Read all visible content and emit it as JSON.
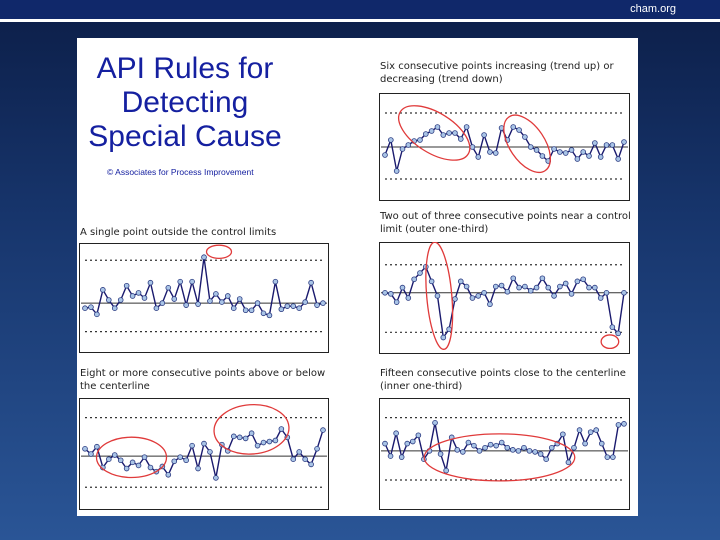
{
  "header": {
    "site": "cham.org"
  },
  "slide": {
    "title_lines": [
      "API Rules for",
      "Detecting",
      "Special Cause"
    ],
    "copyright": "© Associates for Process Improvement"
  },
  "colors": {
    "line": "#1a1a6e",
    "marker_fill": "#a9c4e6",
    "highlight": "#e03a3a",
    "limit": "#333333"
  },
  "chart_data": [
    {
      "type": "line",
      "caption": "Six consecutive points increasing (trend up) or decreasing (trend down)",
      "ylim": [
        0,
        100
      ],
      "ucl": 84,
      "lcl": 18,
      "centerline": 50,
      "grid": false,
      "y": [
        42,
        57,
        26,
        48,
        52,
        56,
        57,
        63,
        66,
        70,
        62,
        64,
        64,
        58,
        70,
        50,
        40,
        62,
        45,
        44,
        69,
        57,
        70,
        67,
        60,
        50,
        47,
        41,
        36,
        48,
        45,
        44,
        47,
        38,
        45,
        41,
        54,
        40,
        52,
        52,
        38,
        55
      ],
      "highlights": [
        [
          0.22,
          0.37,
          0.08,
          0.37,
          -58
        ],
        [
          0.59,
          0.47,
          0.07,
          0.3,
          -34
        ]
      ]
    },
    {
      "type": "line",
      "caption": "A single point outside the control limits",
      "ylim": [
        0,
        100
      ],
      "ucl": 87,
      "lcl": 17,
      "centerline": 45,
      "grid": false,
      "y": [
        40,
        41,
        34,
        58,
        48,
        40,
        48,
        62,
        52,
        55,
        50,
        65,
        40,
        45,
        60,
        49,
        66,
        43,
        66,
        44,
        90,
        47,
        54,
        46,
        52,
        40,
        49,
        38,
        38,
        45,
        35,
        33,
        66,
        39,
        42,
        42,
        40,
        46,
        65,
        43,
        45
      ],
      "highlights": [
        [
          0.56,
          0.08,
          0.05,
          0.06,
          0
        ]
      ]
    },
    {
      "type": "line",
      "caption": "Two out of three consecutive points near a control limit (outer one-third)",
      "ylim": [
        0,
        100
      ],
      "ucl": 82,
      "lcl": 17,
      "centerline": 55,
      "grid": false,
      "y": [
        55,
        54,
        46,
        60,
        50,
        68,
        74,
        80,
        66,
        52,
        12,
        20,
        49,
        66,
        61,
        50,
        52,
        55,
        44,
        61,
        62,
        56,
        69,
        60,
        61,
        57,
        60,
        69,
        60,
        52,
        61,
        64,
        54,
        66,
        68,
        60,
        60,
        50,
        55,
        22,
        16,
        55
      ],
      "highlights": [
        [
          0.24,
          0.48,
          0.05,
          0.48,
          -5
        ],
        [
          0.92,
          0.89,
          0.035,
          0.06,
          0
        ]
      ]
    },
    {
      "type": "line",
      "caption": "Eight or more consecutive points above or below the centerline",
      "ylim": [
        0,
        100
      ],
      "ucl": 85,
      "lcl": 18,
      "centerline": 48,
      "grid": false,
      "y": [
        55,
        50,
        57,
        37,
        45,
        49,
        44,
        36,
        42,
        39,
        47,
        37,
        33,
        38,
        30,
        43,
        47,
        44,
        58,
        36,
        60,
        52,
        27,
        59,
        53,
        67,
        66,
        65,
        70,
        58,
        61,
        62,
        63,
        74,
        66,
        45,
        52,
        45,
        40,
        55,
        73
      ],
      "highlights": [
        [
          0.21,
          0.53,
          0.14,
          0.18,
          0
        ],
        [
          0.69,
          0.28,
          0.15,
          0.22,
          -4
        ]
      ]
    },
    {
      "type": "line",
      "caption": "Fifteen consecutive points close to the centerline (inner one-third)",
      "ylim": [
        0,
        100
      ],
      "ucl": 85,
      "lcl": 25,
      "centerline": 53,
      "grid": false,
      "y": [
        60,
        48,
        70,
        47,
        60,
        62,
        68,
        45,
        53,
        80,
        50,
        34,
        66,
        54,
        52,
        61,
        58,
        53,
        56,
        59,
        58,
        61,
        56,
        54,
        53,
        56,
        53,
        52,
        50,
        45,
        56,
        60,
        69,
        42,
        56,
        73,
        60,
        71,
        73,
        60,
        47,
        47,
        78,
        79
      ],
      "highlights": [
        [
          0.48,
          0.53,
          0.3,
          0.21,
          0
        ]
      ]
    }
  ]
}
